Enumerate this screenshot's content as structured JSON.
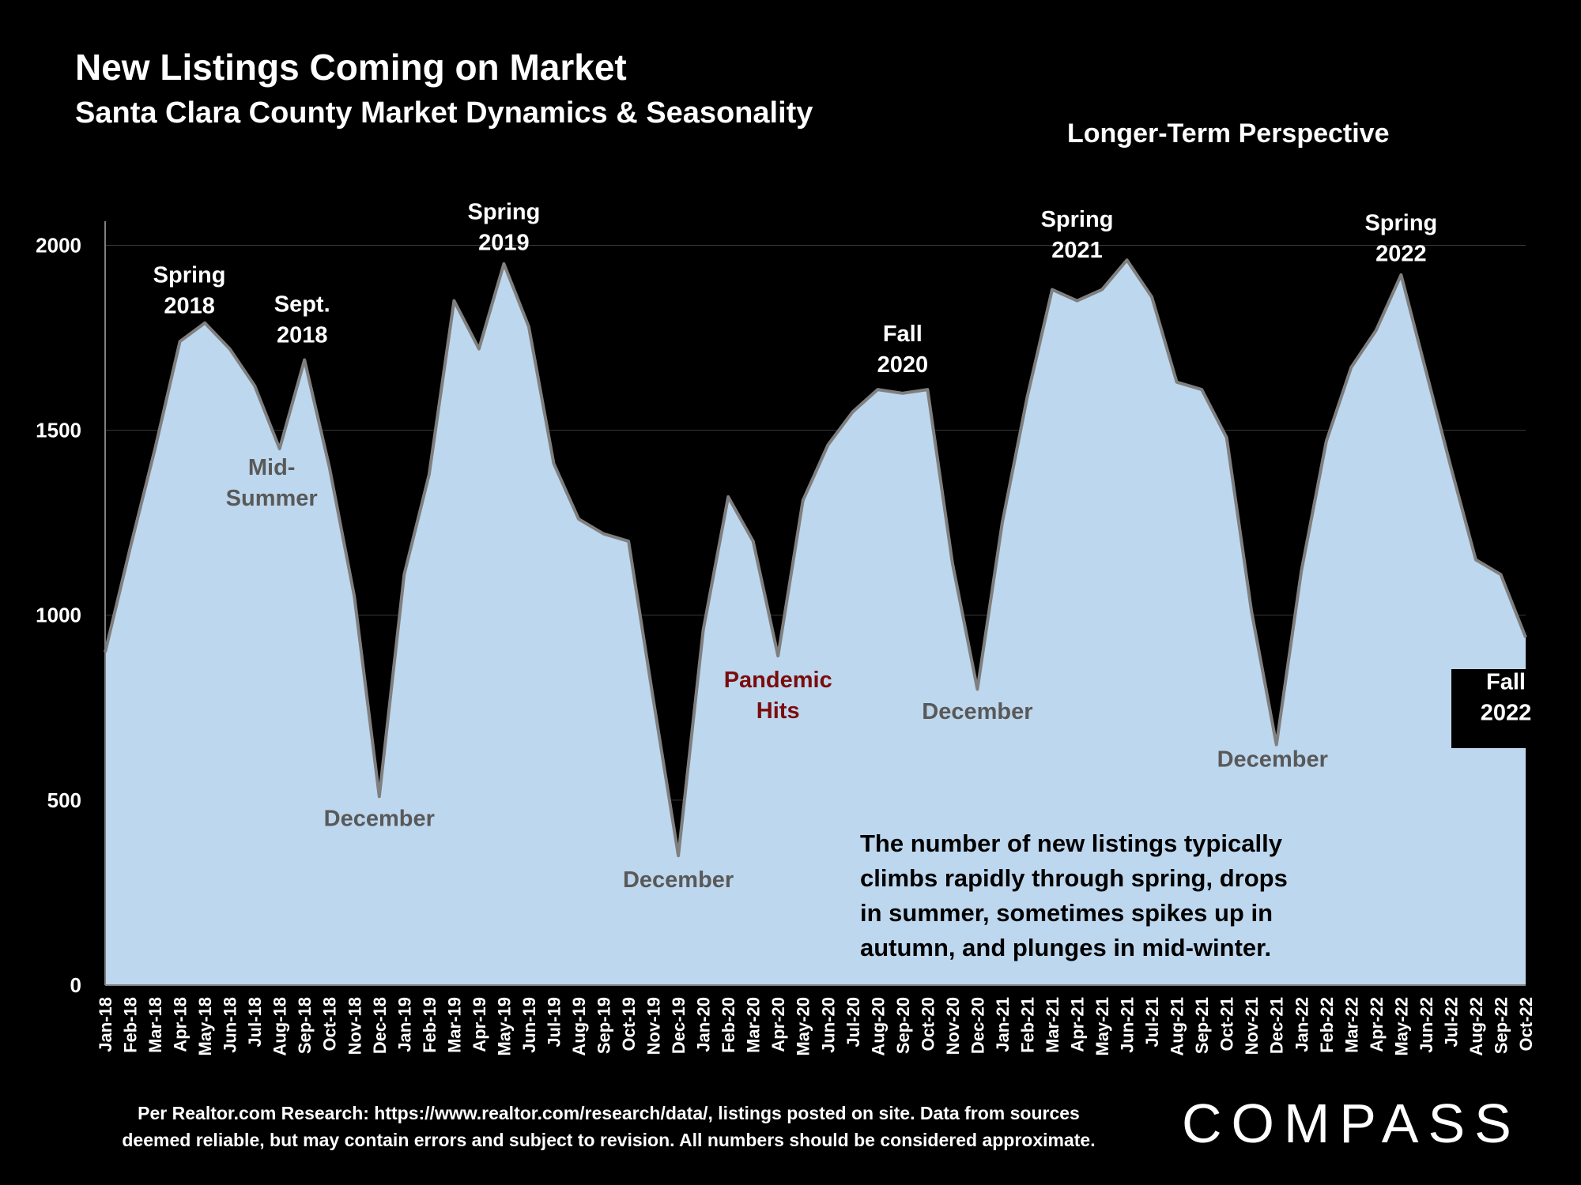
{
  "header": {
    "title": "New Listings Coming on Market",
    "subtitle": "Santa Clara County Market Dynamics & Seasonality",
    "perspective": "Longer-Term Perspective"
  },
  "footer": {
    "source_line1": "Per Realtor.com Research:  https://www.realtor.com/research/data/, listings posted on site. Data from sources",
    "source_line2": "deemed reliable, but may contain errors and subject to revision. All numbers should be considered approximate.",
    "logo": "COMPASS"
  },
  "colors": {
    "background": "#000000",
    "area_fill": "#bdd7ee",
    "area_line": "#7f7f7f",
    "annotation_dark": "#595959",
    "annotation_red": "#7b0c0c",
    "annotation_black": "#000000",
    "text": "#ffffff"
  },
  "chart_data": {
    "type": "area",
    "title": "New Listings Coming on Market",
    "ylim": [
      0,
      2000
    ],
    "y_ticks": [
      "0",
      "500",
      "1000",
      "1500",
      "2000"
    ],
    "grid": true,
    "categories": [
      "Jan-18",
      "Feb-18",
      "Mar-18",
      "Apr-18",
      "May-18",
      "Jun-18",
      "Jul-18",
      "Aug-18",
      "Sep-18",
      "Oct-18",
      "Nov-18",
      "Dec-18",
      "Jan-19",
      "Feb-19",
      "Mar-19",
      "Apr-19",
      "May-19",
      "Jun-19",
      "Jul-19",
      "Aug-19",
      "Sep-19",
      "Oct-19",
      "Nov-19",
      "Dec-19",
      "Jan-20",
      "Feb-20",
      "Mar-20",
      "Apr-20",
      "May-20",
      "Jun-20",
      "Jul-20",
      "Aug-20",
      "Sep-20",
      "Oct-20",
      "Nov-20",
      "Dec-20",
      "Jan-21",
      "Feb-21",
      "Mar-21",
      "Apr-21",
      "May-21",
      "Jun-21",
      "Jul-21",
      "Aug-21",
      "Sep-21",
      "Oct-21",
      "Nov-21",
      "Dec-21",
      "Jan-22",
      "Feb-22",
      "Mar-22",
      "Apr-22",
      "May-22",
      "Jun-22",
      "Jul-22",
      "Aug-22",
      "Sep-22",
      "Oct-22"
    ],
    "values": [
      900,
      1180,
      1450,
      1740,
      1790,
      1720,
      1620,
      1450,
      1690,
      1400,
      1050,
      510,
      1110,
      1380,
      1850,
      1720,
      1950,
      1780,
      1410,
      1260,
      1220,
      1200,
      770,
      350,
      960,
      1320,
      1200,
      890,
      1310,
      1460,
      1550,
      1610,
      1600,
      1610,
      1140,
      800,
      1250,
      1590,
      1880,
      1850,
      1880,
      1960,
      1860,
      1630,
      1610,
      1480,
      1010,
      650,
      1120,
      1470,
      1670,
      1770,
      1920,
      1660,
      1400,
      1150,
      1110,
      940
    ],
    "annotations": [
      {
        "lines": [
          "Spring",
          "2018"
        ],
        "category": "Apr-18",
        "value": 1900,
        "style": "white"
      },
      {
        "lines": [
          "Sept.",
          "2018"
        ],
        "category": "Sep-18",
        "value": 1820,
        "style": "white"
      },
      {
        "lines": [
          "Mid-",
          "Summer"
        ],
        "category": "Aug-18",
        "value": 1380,
        "style": "dark"
      },
      {
        "lines": [
          "December"
        ],
        "category": "Dec-18",
        "value": 430,
        "style": "dark"
      },
      {
        "lines": [
          "Spring",
          "2019"
        ],
        "category": "May-19",
        "value": 2070,
        "style": "white"
      },
      {
        "lines": [
          "December"
        ],
        "category": "Dec-19",
        "value": 265,
        "style": "dark"
      },
      {
        "lines": [
          "Pandemic",
          "Hits"
        ],
        "category": "Apr-20",
        "value": 805,
        "style": "red"
      },
      {
        "lines": [
          "Fall",
          "2020"
        ],
        "category": "Sep-20",
        "value": 1740,
        "style": "white"
      },
      {
        "lines": [
          "December"
        ],
        "category": "Dec-20",
        "value": 720,
        "style": "dark"
      },
      {
        "lines": [
          "Spring",
          "2021"
        ],
        "category": "Apr-21",
        "value": 2050,
        "style": "white"
      },
      {
        "lines": [
          "December"
        ],
        "category": "Dec-21",
        "value": 590,
        "style": "dark"
      },
      {
        "lines": [
          "Spring",
          "2022"
        ],
        "category": "May-22",
        "value": 2040,
        "style": "white"
      },
      {
        "lines": [
          "Fall",
          "2022"
        ],
        "category": "Oct-22",
        "value": 800,
        "style": "white"
      }
    ],
    "note": "The number of new listings typically climbs rapidly through spring, drops in summer, sometimes spikes up in autumn, and plunges in mid-winter."
  }
}
